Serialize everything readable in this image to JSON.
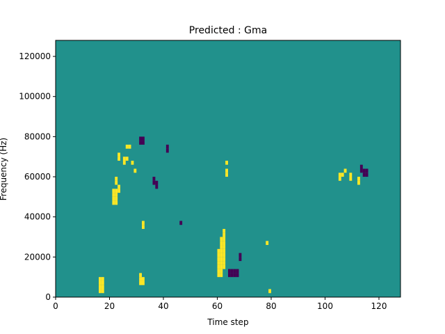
{
  "chart_data": {
    "type": "heatmap",
    "title": "Predicted : Gma",
    "xlabel": "Time step",
    "ylabel": "Frequency (Hz)",
    "xlim": [
      0,
      128
    ],
    "ylim": [
      0,
      128000
    ],
    "xticks": [
      0,
      20,
      40,
      60,
      80,
      100,
      120
    ],
    "yticks": [
      0,
      20000,
      40000,
      60000,
      80000,
      100000,
      120000
    ],
    "n_time_steps": 128,
    "n_freq_bins": 64,
    "freq_bin_width": 2000,
    "grid": false,
    "legend": "none",
    "colormap": "viridis",
    "colors": {
      "background": "#21918c",
      "high": "#fde725",
      "low": "#440154"
    },
    "high_cells": [
      [
        16,
        1
      ],
      [
        16,
        2
      ],
      [
        16,
        3
      ],
      [
        16,
        4
      ],
      [
        17,
        1
      ],
      [
        17,
        2
      ],
      [
        17,
        3
      ],
      [
        17,
        4
      ],
      [
        21,
        23
      ],
      [
        21,
        24
      ],
      [
        21,
        25
      ],
      [
        21,
        26
      ],
      [
        22,
        26
      ],
      [
        22,
        24
      ],
      [
        22,
        23
      ],
      [
        22,
        25
      ],
      [
        22,
        28
      ],
      [
        22,
        29
      ],
      [
        23,
        26
      ],
      [
        23,
        27
      ],
      [
        23,
        34
      ],
      [
        23,
        35
      ],
      [
        25,
        33
      ],
      [
        25,
        34
      ],
      [
        26,
        34
      ],
      [
        26,
        37
      ],
      [
        27,
        37
      ],
      [
        28,
        33
      ],
      [
        29,
        31
      ],
      [
        31,
        3
      ],
      [
        31,
        4
      ],
      [
        31,
        5
      ],
      [
        32,
        3
      ],
      [
        32,
        4
      ],
      [
        32,
        17
      ],
      [
        32,
        18
      ],
      [
        60,
        5
      ],
      [
        60,
        6
      ],
      [
        60,
        7
      ],
      [
        60,
        8
      ],
      [
        60,
        9
      ],
      [
        60,
        10
      ],
      [
        60,
        11
      ],
      [
        61,
        5
      ],
      [
        61,
        6
      ],
      [
        61,
        7
      ],
      [
        61,
        8
      ],
      [
        61,
        9
      ],
      [
        61,
        10
      ],
      [
        61,
        11
      ],
      [
        61,
        12
      ],
      [
        61,
        13
      ],
      [
        61,
        14
      ],
      [
        62,
        7
      ],
      [
        62,
        8
      ],
      [
        62,
        9
      ],
      [
        62,
        10
      ],
      [
        62,
        11
      ],
      [
        62,
        12
      ],
      [
        62,
        13
      ],
      [
        62,
        14
      ],
      [
        62,
        15
      ],
      [
        62,
        16
      ],
      [
        63,
        30
      ],
      [
        63,
        31
      ],
      [
        63,
        33
      ],
      [
        78,
        13
      ],
      [
        79,
        1
      ],
      [
        105,
        29
      ],
      [
        105,
        30
      ],
      [
        106,
        30
      ],
      [
        107,
        31
      ],
      [
        109,
        29
      ],
      [
        109,
        30
      ],
      [
        112,
        28
      ],
      [
        112,
        29
      ]
    ],
    "low_cells": [
      [
        31,
        38
      ],
      [
        31,
        39
      ],
      [
        32,
        38
      ],
      [
        32,
        39
      ],
      [
        36,
        28
      ],
      [
        36,
        29
      ],
      [
        37,
        27
      ],
      [
        37,
        28
      ],
      [
        41,
        36
      ],
      [
        41,
        37
      ],
      [
        46,
        18
      ],
      [
        64,
        5
      ],
      [
        64,
        6
      ],
      [
        65,
        5
      ],
      [
        65,
        6
      ],
      [
        66,
        5
      ],
      [
        66,
        6
      ],
      [
        67,
        5
      ],
      [
        67,
        6
      ],
      [
        68,
        9
      ],
      [
        68,
        10
      ],
      [
        113,
        31
      ],
      [
        113,
        32
      ],
      [
        114,
        30
      ],
      [
        114,
        31
      ],
      [
        115,
        30
      ],
      [
        115,
        31
      ]
    ]
  }
}
